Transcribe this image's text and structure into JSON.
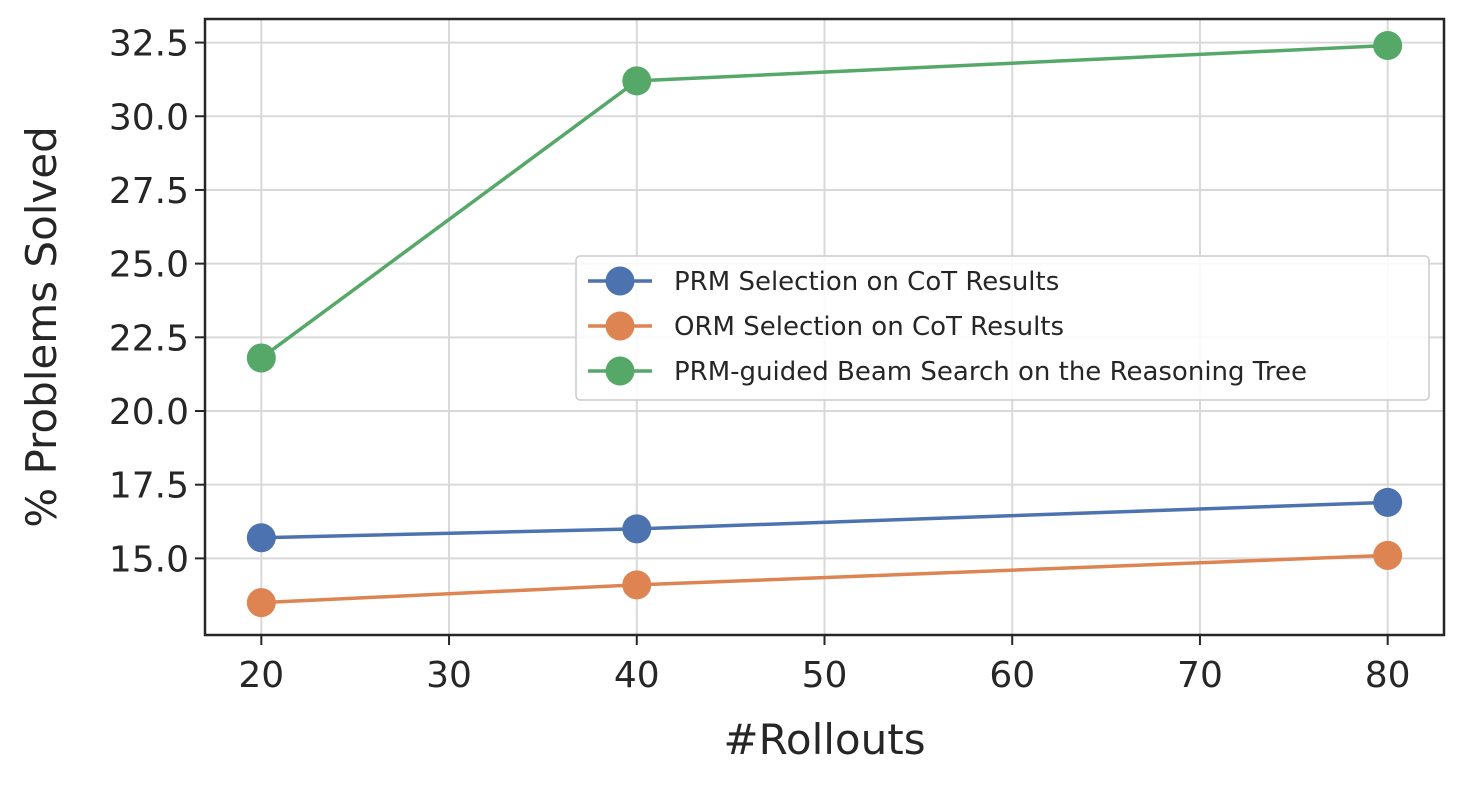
{
  "chart_data": {
    "type": "line",
    "xlabel": "#Rollouts",
    "ylabel": "% Problems Solved",
    "xlim": [
      17,
      83
    ],
    "ylim": [
      12.4,
      33.3
    ],
    "xticks": [
      20,
      30,
      40,
      50,
      60,
      70,
      80
    ],
    "yticks": [
      15.0,
      17.5,
      20.0,
      22.5,
      25.0,
      27.5,
      30.0,
      32.5
    ],
    "grid": true,
    "legend_position": "center-right",
    "x": [
      20,
      40,
      80
    ],
    "series": [
      {
        "name": "PRM Selection on CoT Results",
        "color": "#4c72b0",
        "values": [
          15.7,
          16.0,
          16.9
        ]
      },
      {
        "name": "ORM Selection on CoT Results",
        "color": "#dd8452",
        "values": [
          13.5,
          14.1,
          15.1
        ]
      },
      {
        "name": "PRM-guided Beam Search on the Reasoning Tree",
        "color": "#55a868",
        "values": [
          21.8,
          31.2,
          32.4
        ]
      }
    ]
  }
}
